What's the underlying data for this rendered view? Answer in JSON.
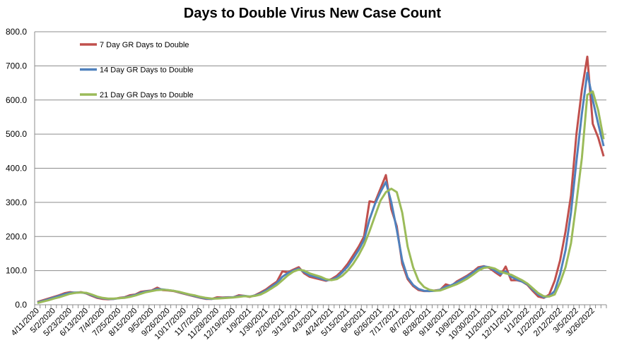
{
  "chart_data": {
    "type": "line",
    "title": "Days to Double Virus New Case Count",
    "xlabel": "",
    "ylabel": "",
    "ylim": [
      0,
      800
    ],
    "y_ticks": [
      "0.0",
      "100.0",
      "200.0",
      "300.0",
      "400.0",
      "500.0",
      "600.0",
      "700.0",
      "800.0"
    ],
    "grid": "horizontal",
    "legend_position": "top-left",
    "x_tick_labels": [
      "4/11/2020",
      "5/2/2020",
      "5/23/2020",
      "6/13/2020",
      "7/4/2020",
      "7/25/2020",
      "8/15/2020",
      "9/5/2020",
      "9/26/2020",
      "10/17/2020",
      "11/7/2020",
      "11/28/2020",
      "12/19/2020",
      "1/9/2021",
      "1/30/2021",
      "2/20/2021",
      "3/13/2021",
      "4/3/2021",
      "4/24/2021",
      "5/15/2021",
      "6/5/2021",
      "6/26/2021",
      "7/17/2021",
      "8/7/2021",
      "8/28/2021",
      "9/18/2021",
      "10/9/2021",
      "10/30/2021",
      "11/20/2021",
      "12/11/2021",
      "1/1/2022",
      "1/22/2022",
      "2/12/2022",
      "3/5/2022",
      "3/26/2022"
    ],
    "x_frequency": "weekly",
    "series": [
      {
        "name": "7 Day GR Days to Double",
        "color": "#C0504D",
        "values": [
          8,
          13,
          18,
          23,
          28,
          34,
          37,
          35,
          37,
          33,
          26,
          20,
          17,
          16,
          17,
          20,
          22,
          28,
          30,
          38,
          40,
          42,
          50,
          43,
          42,
          40,
          36,
          32,
          28,
          24,
          20,
          17,
          17,
          22,
          21,
          22,
          22,
          28,
          26,
          23,
          28,
          36,
          45,
          57,
          68,
          98,
          95,
          103,
          110,
          92,
          82,
          78,
          74,
          70,
          75,
          85,
          100,
          120,
          145,
          170,
          200,
          303,
          300,
          340,
          380,
          280,
          230,
          120,
          75,
          55,
          43,
          40,
          40,
          42,
          44,
          60,
          55,
          68,
          77,
          86,
          97,
          110,
          113,
          108,
          96,
          85,
          112,
          72,
          72,
          68,
          58,
          40,
          24,
          20,
          30,
          70,
          130,
          215,
          320,
          500,
          630,
          727,
          530,
          490,
          435
        ]
      },
      {
        "name": "14 Day GR Days to Double",
        "color": "#4F81BD",
        "values": [
          7,
          11,
          16,
          21,
          26,
          31,
          35,
          36,
          36,
          34,
          28,
          22,
          19,
          17,
          17,
          19,
          21,
          25,
          29,
          35,
          39,
          41,
          46,
          45,
          43,
          41,
          37,
          33,
          29,
          25,
          21,
          18,
          17,
          19,
          20,
          21,
          22,
          25,
          26,
          24,
          27,
          33,
          42,
          53,
          64,
          82,
          93,
          100,
          106,
          96,
          86,
          82,
          77,
          72,
          73,
          80,
          95,
          112,
          135,
          160,
          190,
          250,
          295,
          330,
          360,
          300,
          220,
          130,
          80,
          58,
          46,
          41,
          40,
          41,
          44,
          53,
          57,
          65,
          74,
          83,
          94,
          106,
          112,
          110,
          100,
          90,
          98,
          82,
          74,
          68,
          60,
          44,
          30,
          22,
          25,
          40,
          90,
          160,
          270,
          420,
          560,
          680,
          600,
          530,
          465
        ]
      },
      {
        "name": "21 Day GR Days to Double",
        "color": "#9BBB59",
        "values": [
          5,
          9,
          13,
          18,
          22,
          27,
          32,
          35,
          36,
          35,
          30,
          24,
          20,
          18,
          18,
          19,
          20,
          23,
          27,
          32,
          37,
          40,
          43,
          44,
          43,
          41,
          38,
          34,
          30,
          27,
          23,
          20,
          18,
          18,
          19,
          20,
          21,
          23,
          25,
          24,
          26,
          30,
          38,
          48,
          58,
          72,
          86,
          97,
          103,
          100,
          92,
          87,
          82,
          75,
          72,
          75,
          85,
          100,
          120,
          145,
          175,
          215,
          260,
          305,
          330,
          340,
          330,
          270,
          170,
          110,
          70,
          52,
          44,
          41,
          42,
          48,
          54,
          60,
          68,
          77,
          88,
          100,
          108,
          110,
          106,
          97,
          92,
          88,
          80,
          72,
          62,
          48,
          34,
          25,
          24,
          30,
          65,
          110,
          180,
          300,
          430,
          615,
          625,
          570,
          485
        ]
      }
    ]
  }
}
